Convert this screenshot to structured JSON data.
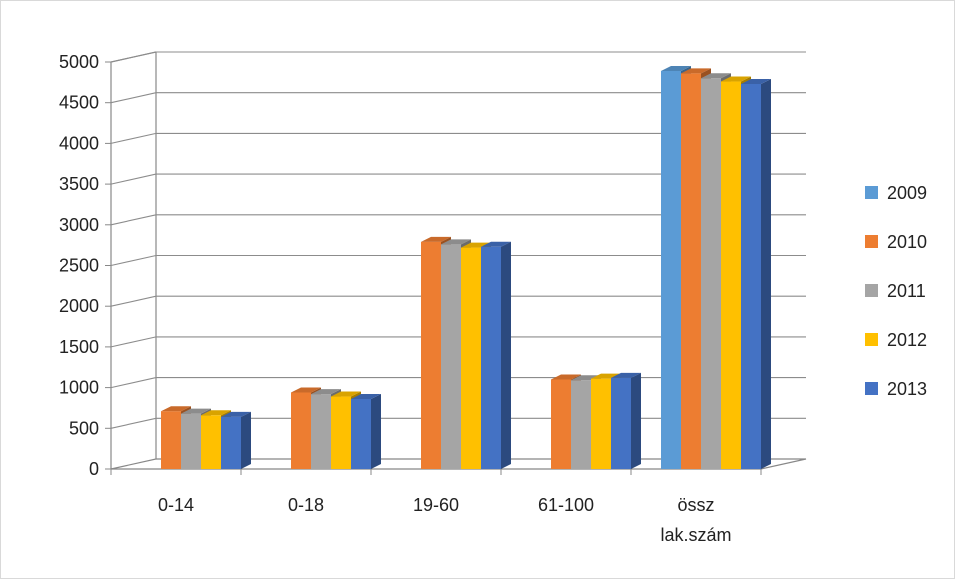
{
  "chart_data": {
    "type": "bar",
    "categories": [
      "0-14",
      "0-18",
      "19-60",
      "61-100",
      "össz lak.szám"
    ],
    "category_lines": [
      [
        "0-14"
      ],
      [
        "0-18"
      ],
      [
        "19-60"
      ],
      [
        "61-100"
      ],
      [
        "össz",
        "lak.szám"
      ]
    ],
    "series": [
      {
        "name": "2009",
        "color": "#5b9bd5",
        "values": [
          null,
          null,
          null,
          null,
          4890
        ]
      },
      {
        "name": "2010",
        "color": "#ed7d31",
        "values": [
          710,
          940,
          2790,
          1100,
          4860
        ]
      },
      {
        "name": "2011",
        "color": "#a5a5a5",
        "values": [
          680,
          920,
          2760,
          1090,
          4800
        ]
      },
      {
        "name": "2012",
        "color": "#ffc000",
        "values": [
          660,
          890,
          2720,
          1110,
          4760
        ]
      },
      {
        "name": "2013",
        "color": "#4472c4",
        "values": [
          640,
          860,
          2730,
          1120,
          4730
        ]
      }
    ],
    "y_ticks": [
      0,
      500,
      1000,
      1500,
      2000,
      2500,
      3000,
      3500,
      4000,
      4500,
      5000
    ],
    "ylim": [
      0,
      5000
    ],
    "grid": true,
    "legend": "right",
    "style": "3d-clustered-column",
    "title": "",
    "xlabel": "",
    "ylabel": ""
  }
}
